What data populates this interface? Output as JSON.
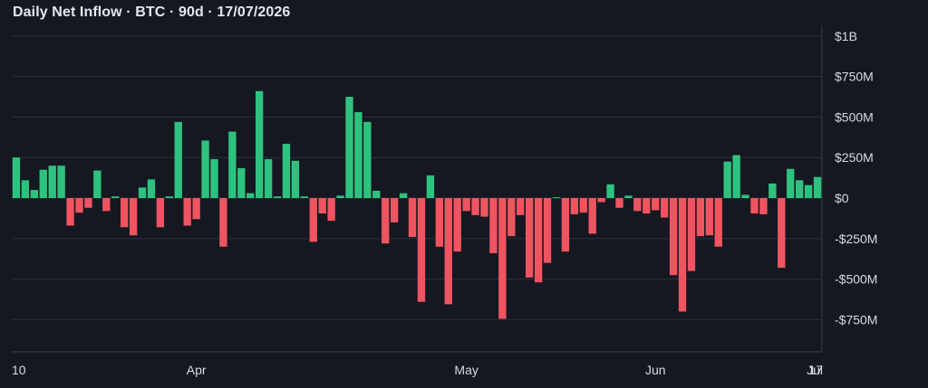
{
  "title": "Daily Net Inflow · BTC · 90d · 17/07/2026",
  "chart_data": {
    "type": "bar",
    "title": "Daily Net Inflow · BTC · 90d · 17/07/2026",
    "unit": "USD",
    "ylim": [
      -950,
      1000
    ],
    "y_ticks": [
      {
        "value": 1000,
        "label": "$1B"
      },
      {
        "value": 750,
        "label": "$750M"
      },
      {
        "value": 500,
        "label": "$500M"
      },
      {
        "value": 250,
        "label": "$250M"
      },
      {
        "value": 0,
        "label": "$0"
      },
      {
        "value": -250,
        "label": "-$250M"
      },
      {
        "value": -500,
        "label": "-$500M"
      },
      {
        "value": -750,
        "label": "-$750M"
      }
    ],
    "x_ticks": [
      {
        "index": 0,
        "label": "10"
      },
      {
        "index": 20,
        "label": "Apr"
      },
      {
        "index": 50,
        "label": "May"
      },
      {
        "index": 71,
        "label": "Jun"
      },
      {
        "index": 97,
        "label": "Jul"
      },
      {
        "index": 110,
        "label": "17"
      }
    ],
    "grid": true,
    "positive_color": "#2fc27f",
    "negative_color": "#ef5560",
    "values_musd": [
      250,
      110,
      50,
      175,
      200,
      200,
      -170,
      -90,
      -60,
      170,
      -80,
      10,
      -180,
      -230,
      65,
      115,
      -180,
      10,
      470,
      -170,
      -130,
      355,
      240,
      -300,
      410,
      185,
      30,
      660,
      240,
      10,
      335,
      230,
      10,
      -270,
      -95,
      -140,
      15,
      625,
      530,
      470,
      45,
      -280,
      -150,
      30,
      -240,
      -640,
      140,
      -300,
      -655,
      -330,
      -80,
      -105,
      -115,
      -340,
      -745,
      -235,
      -105,
      -490,
      -520,
      -400,
      5,
      -330,
      -100,
      -90,
      -220,
      -25,
      85,
      -60,
      15,
      -80,
      -95,
      -75,
      -120,
      -475,
      -700,
      -450,
      -235,
      -230,
      -300,
      225,
      265,
      20,
      -95,
      -100,
      90,
      -430,
      180,
      110,
      80,
      130
    ]
  }
}
